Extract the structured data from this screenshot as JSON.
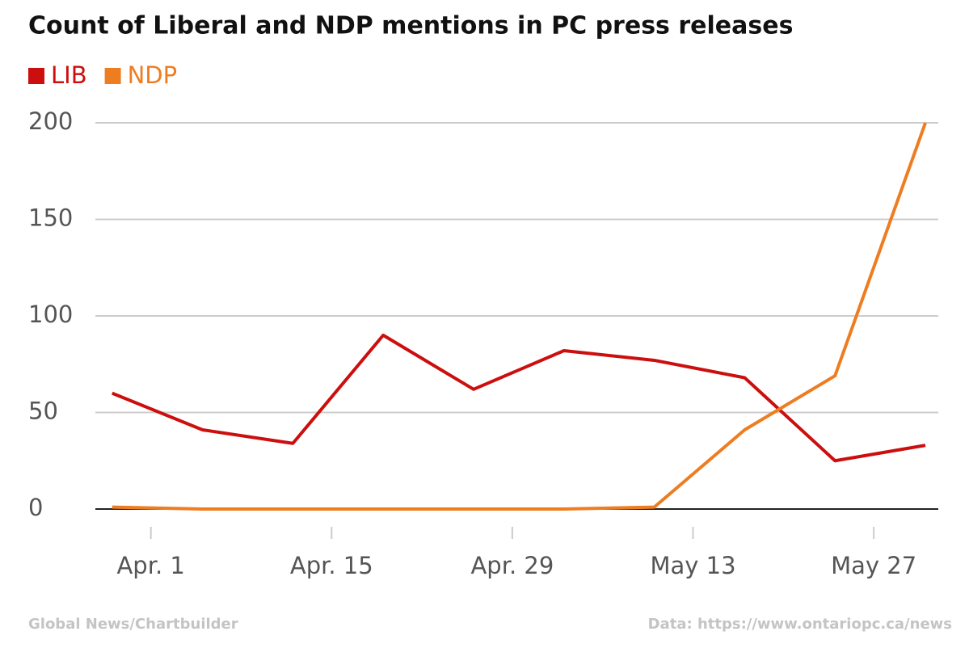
{
  "chart_data": {
    "type": "line",
    "title": "Count of Liberal and NDP mentions in PC press releases",
    "x": [
      88,
      95,
      102,
      109,
      116,
      123,
      130,
      137,
      144,
      151
    ],
    "series": [
      {
        "name": "LIB",
        "color": "#cc0e0e",
        "values": [
          60,
          41,
          34,
          90,
          62,
          82,
          77,
          68,
          25,
          33
        ]
      },
      {
        "name": "NDP",
        "color": "#ee7d22",
        "values": [
          1,
          0,
          0,
          0,
          0,
          0,
          1,
          41,
          69,
          200
        ]
      }
    ],
    "xlim": [
      86.7,
      152
    ],
    "xticks": [
      {
        "value": 91,
        "label": "Apr. 1"
      },
      {
        "value": 105,
        "label": "Apr. 15"
      },
      {
        "value": 119,
        "label": "Apr. 29"
      },
      {
        "value": 133,
        "label": "May 13"
      },
      {
        "value": 147,
        "label": "May 27"
      }
    ],
    "ylim": [
      0,
      200
    ],
    "yticks": [
      0,
      50,
      100,
      150,
      200
    ],
    "grid": true,
    "legend": "top-left",
    "source_left": "Global News/Chartbuilder",
    "source_right": "Data: https://www.ontariopc.ca/news"
  }
}
